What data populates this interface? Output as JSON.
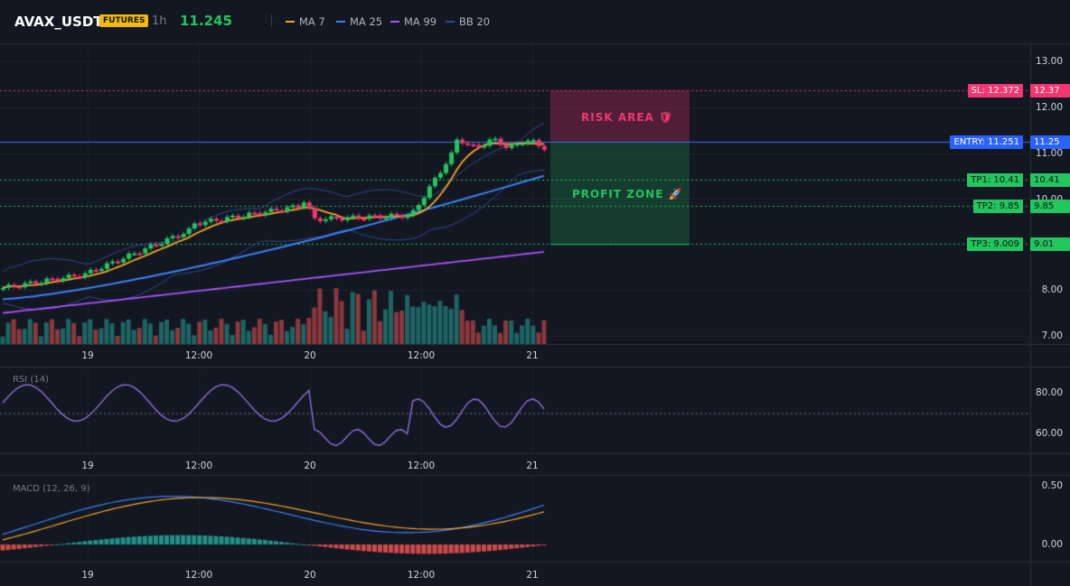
{
  "header": {
    "symbol": "AVAX_USDT",
    "badge": "FUTURES",
    "timeframe": "1h",
    "last_price": "11.245",
    "indicators": [
      {
        "label": "MA 7",
        "color": "#f5a623"
      },
      {
        "label": "MA 25",
        "color": "#3b82f6"
      },
      {
        "label": "MA 99",
        "color": "#a855f7"
      },
      {
        "label": "BB 20",
        "color": "#2d4a8a"
      }
    ]
  },
  "price_axis": {
    "ticks": [
      "13.00",
      "12.00",
      "11.00",
      "10.00",
      "8.00",
      "7.00"
    ]
  },
  "time_axis": {
    "ticks": [
      "19",
      "12:00",
      "20",
      "12:00",
      "21"
    ]
  },
  "levels": {
    "sl": {
      "label": "SL: 12.372",
      "value": "12.37",
      "color": "#f23670"
    },
    "entry": {
      "label": "ENTRY: 11.251",
      "value": "11.25",
      "color": "#2962ff"
    },
    "tp1": {
      "label": "TP1: 10.41",
      "value": "10.41",
      "color": "#22c55e"
    },
    "tp2": {
      "label": "TP2: 9.85",
      "value": "9.85",
      "color": "#22c55e"
    },
    "tp3": {
      "label": "TP3: 9.009",
      "value": "9.01",
      "color": "#22c55e"
    }
  },
  "zones": {
    "risk": "RISK AREA 🛡",
    "profit": "PROFIT ZONE 🚀"
  },
  "rsi": {
    "label": "RSI (14)",
    "ticks": [
      "80.00",
      "60.00"
    ]
  },
  "macd": {
    "label": "MACD (12, 26, 9)",
    "ticks": [
      "0.50",
      "0.00"
    ]
  },
  "colors": {
    "up": "#26a69a",
    "down": "#ef5350",
    "candle_up": "#22c55e",
    "candle_down": "#f23670"
  }
}
